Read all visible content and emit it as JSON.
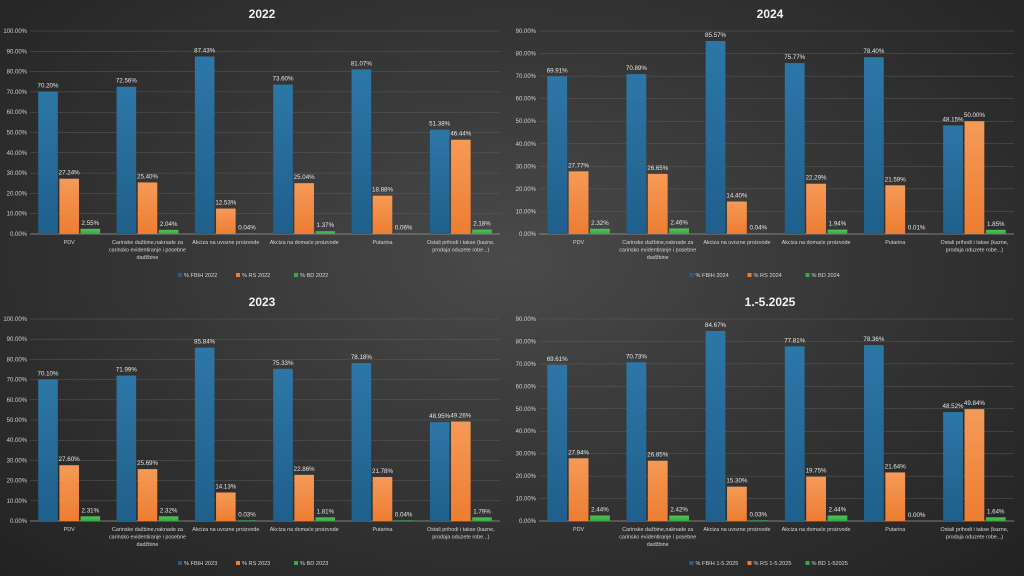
{
  "colors": {
    "fbih": "#1f5f8b",
    "fbih_light": "#2d77a8",
    "rs": "#ed7d31",
    "rs_light": "#f59a57",
    "bd": "#3aa845",
    "grid": "#5c5c5c",
    "axis": "#9a9a9a"
  },
  "chart_data": [
    {
      "type": "bar",
      "title": "2022",
      "ylim": [
        0,
        100
      ],
      "yticks": [
        "0.00%",
        "10.00%",
        "20.00%",
        "30.00%",
        "40.00%",
        "50.00%",
        "60.00%",
        "70.00%",
        "80.00%",
        "90.00%",
        "100.00%"
      ],
      "categories": [
        [
          "PDV"
        ],
        [
          "Carinske dažbine,naknade za",
          "carinsko evidentiranje i posebne",
          "dadžbine"
        ],
        [
          "Akciza na uvozne proizvode"
        ],
        [
          "Akciza na domaće proizvode"
        ],
        [
          "Putarina"
        ],
        [
          "Ostali prihodi i takse (kazne,",
          "prodaja oduzete robe...)"
        ]
      ],
      "series": [
        {
          "name": "% FBIH 2022",
          "values": [
            70.2,
            72.56,
            87.43,
            73.6,
            81.07,
            51.38
          ],
          "labels": [
            "70.20%",
            "72.56%",
            "87.43%",
            "73.60%",
            "81.07%",
            "51.38%"
          ]
        },
        {
          "name": "% RS 2022",
          "values": [
            27.24,
            25.4,
            12.53,
            25.04,
            18.88,
            46.44
          ],
          "labels": [
            "27.24%",
            "25.40%",
            "12.53%",
            "25.04%",
            "18.88%",
            "46.44%"
          ]
        },
        {
          "name": "% BD 2022",
          "values": [
            2.55,
            2.04,
            0.04,
            1.37,
            0.06,
            2.18
          ],
          "labels": [
            "2.55%",
            "2.04%",
            "0.04%",
            "1.37%",
            "0.06%",
            "2.18%"
          ]
        }
      ]
    },
    {
      "type": "bar",
      "title": "2024",
      "ylim": [
        0,
        90
      ],
      "yticks": [
        "0.00%",
        "10.00%",
        "20.00%",
        "30.00%",
        "40.00%",
        "50.00%",
        "60.00%",
        "70.00%",
        "80.00%",
        "90.00%"
      ],
      "categories": [
        [
          "PDV"
        ],
        [
          "Carinske dažbine,naknade za",
          "carinsko evidentiranje i posebne",
          "dadžbine"
        ],
        [
          "Akciza na uvozne proizvode"
        ],
        [
          "Akciza na domaće proizvode"
        ],
        [
          "Putarina"
        ],
        [
          "Ostali prihodi i takse (kazne,",
          "prodaja oduzete robe...)"
        ]
      ],
      "series": [
        {
          "name": "% FBIH 2024",
          "values": [
            69.91,
            70.89,
            85.57,
            75.77,
            78.4,
            48.15
          ],
          "labels": [
            "69.91%",
            "70.89%",
            "85.57%",
            "75.77%",
            "78.40%",
            "48.15%"
          ]
        },
        {
          "name": "% RS 2024",
          "values": [
            27.77,
            26.65,
            14.4,
            22.29,
            21.59,
            50.0
          ],
          "labels": [
            "27.77%",
            "26.65%",
            "14.40%",
            "22.29%",
            "21.59%",
            "50.00%"
          ]
        },
        {
          "name": "% BD 2024",
          "values": [
            2.32,
            2.46,
            0.04,
            1.94,
            0.01,
            1.85
          ],
          "labels": [
            "2.32%",
            "2.46%",
            "0.04%",
            "1.94%",
            "0.01%",
            "1.85%"
          ]
        }
      ]
    },
    {
      "type": "bar",
      "title": "2023",
      "ylim": [
        0,
        100
      ],
      "yticks": [
        "0.00%",
        "10.00%",
        "20.00%",
        "30.00%",
        "40.00%",
        "50.00%",
        "60.00%",
        "70.00%",
        "80.00%",
        "90.00%",
        "100.00%"
      ],
      "categories": [
        [
          "PDV"
        ],
        [
          "Carinske dažbine,naknade za",
          "carinsko evidentiranje i posebne",
          "dadžbine"
        ],
        [
          "Akciza na uvozne proizvode"
        ],
        [
          "Akciza na domaće proizvode"
        ],
        [
          "Putarina"
        ],
        [
          "Ostali prihodi i takse (kazne,",
          "prodaja oduzete robe...)"
        ]
      ],
      "series": [
        {
          "name": "% FBIH 2023",
          "values": [
            70.1,
            71.99,
            85.84,
            75.33,
            78.18,
            48.95
          ],
          "labels": [
            "70.10%",
            "71.99%",
            "85.84%",
            "75.33%",
            "78.18%",
            "48.95%"
          ]
        },
        {
          "name": "% RS 2023",
          "values": [
            27.6,
            25.69,
            14.13,
            22.86,
            21.78,
            49.26
          ],
          "labels": [
            "27.60%",
            "25.69%",
            "14.13%",
            "22.86%",
            "21.78%",
            "49.26%"
          ]
        },
        {
          "name": "% BD 2023",
          "values": [
            2.31,
            2.32,
            0.03,
            1.81,
            0.04,
            1.79
          ],
          "labels": [
            "2.31%",
            "2.32%",
            "0.03%",
            "1.81%",
            "0.04%",
            "1.79%"
          ]
        }
      ]
    },
    {
      "type": "bar",
      "title": "1.-5.2025",
      "ylim": [
        0,
        90
      ],
      "yticks": [
        "0.00%",
        "10.00%",
        "20.00%",
        "30.00%",
        "40.00%",
        "50.00%",
        "60.00%",
        "70.00%",
        "80.00%",
        "90.00%"
      ],
      "categories": [
        [
          "PDV"
        ],
        [
          "Carinske dažbine,naknade za",
          "carinsko evidentiranje i posebne",
          "dadžbine"
        ],
        [
          "Akciza na uvozne proizvode"
        ],
        [
          "Akciza na domaće proizvode"
        ],
        [
          "Putarina"
        ],
        [
          "Ostali prihodi i takse (kazne,",
          "prodaja oduzete robe...)"
        ]
      ],
      "series": [
        {
          "name": "% FBIH 1-5.2025",
          "values": [
            69.61,
            70.73,
            84.67,
            77.81,
            78.36,
            48.52
          ],
          "labels": [
            "69.61%",
            "70.73%",
            "84.67%",
            "77.81%",
            "78.36%",
            "48.52%"
          ]
        },
        {
          "name": "% RS 1-5.2025",
          "values": [
            27.94,
            26.85,
            15.3,
            19.75,
            21.64,
            49.84
          ],
          "labels": [
            "27.94%",
            "26.85%",
            "15.30%",
            "19.75%",
            "21.64%",
            "49.84%"
          ]
        },
        {
          "name": "% BD 1-52025",
          "values": [
            2.44,
            2.42,
            0.03,
            2.44,
            0.0,
            1.64
          ],
          "labels": [
            "2.44%",
            "2.42%",
            "0.03%",
            "2.44%",
            "0.00%",
            "1.64%"
          ]
        }
      ]
    }
  ]
}
